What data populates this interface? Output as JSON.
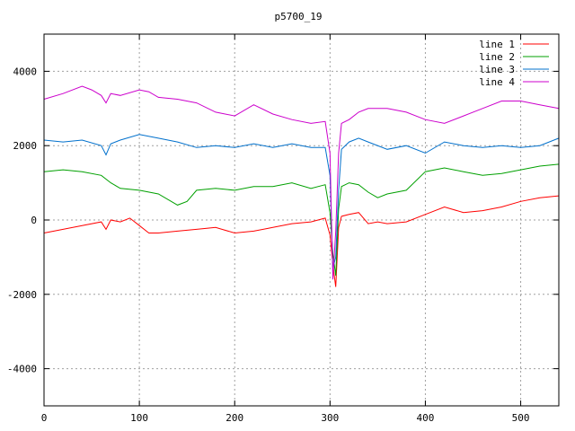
{
  "chart_data": {
    "type": "line",
    "title": "p5700_19",
    "xlabel": "",
    "ylabel": "",
    "xlim": [
      0,
      540
    ],
    "ylim": [
      -5000,
      5000
    ],
    "xticks": [
      0,
      100,
      200,
      300,
      400,
      500
    ],
    "yticks": [
      -4000,
      -2000,
      0,
      2000,
      4000
    ],
    "grid": true,
    "legend_position": "top-right",
    "series": [
      {
        "name": "line 1",
        "color": "#ff0000",
        "x": [
          0,
          20,
          40,
          60,
          65,
          70,
          80,
          90,
          100,
          110,
          120,
          140,
          160,
          180,
          200,
          220,
          240,
          260,
          280,
          295,
          300,
          303,
          306,
          309,
          312,
          320,
          330,
          340,
          350,
          360,
          380,
          400,
          420,
          440,
          460,
          480,
          500,
          520,
          540
        ],
        "y": [
          -350,
          -250,
          -150,
          -50,
          -250,
          0,
          -50,
          50,
          -150,
          -350,
          -350,
          -300,
          -250,
          -200,
          -350,
          -300,
          -200,
          -100,
          -50,
          50,
          -400,
          -1200,
          -1800,
          -200,
          100,
          150,
          200,
          -100,
          -50,
          -100,
          -50,
          150,
          350,
          200,
          250,
          350,
          500,
          600,
          650
        ]
      },
      {
        "name": "line 2",
        "color": "#00a000",
        "x": [
          0,
          20,
          40,
          60,
          70,
          80,
          100,
          120,
          140,
          150,
          160,
          180,
          200,
          220,
          240,
          260,
          280,
          295,
          300,
          303,
          306,
          309,
          312,
          320,
          330,
          340,
          350,
          360,
          380,
          400,
          420,
          440,
          460,
          480,
          500,
          520,
          540
        ],
        "y": [
          1300,
          1350,
          1300,
          1200,
          1000,
          850,
          800,
          700,
          400,
          500,
          800,
          850,
          800,
          900,
          900,
          1000,
          850,
          950,
          200,
          -900,
          -1500,
          300,
          900,
          1000,
          950,
          750,
          600,
          700,
          800,
          1300,
          1400,
          1300,
          1200,
          1250,
          1350,
          1450,
          1500
        ]
      },
      {
        "name": "line 3",
        "color": "#0070cc",
        "x": [
          0,
          20,
          40,
          60,
          65,
          70,
          80,
          100,
          120,
          140,
          160,
          180,
          200,
          220,
          240,
          260,
          280,
          295,
          300,
          303,
          306,
          309,
          312,
          320,
          330,
          340,
          360,
          380,
          400,
          420,
          440,
          460,
          480,
          500,
          520,
          540
        ],
        "y": [
          2150,
          2100,
          2150,
          2000,
          1750,
          2050,
          2150,
          2300,
          2200,
          2100,
          1950,
          2000,
          1950,
          2050,
          1950,
          2050,
          1950,
          1950,
          1200,
          -1300,
          -1000,
          800,
          1900,
          2100,
          2200,
          2100,
          1900,
          2000,
          1800,
          2100,
          2000,
          1950,
          2000,
          1950,
          2000,
          2200
        ]
      },
      {
        "name": "line 4",
        "color": "#cc00cc",
        "x": [
          0,
          20,
          40,
          50,
          60,
          65,
          70,
          80,
          100,
          110,
          120,
          140,
          160,
          180,
          200,
          220,
          240,
          260,
          280,
          295,
          300,
          303,
          306,
          309,
          312,
          320,
          330,
          340,
          360,
          380,
          400,
          420,
          440,
          460,
          480,
          500,
          520,
          540
        ],
        "y": [
          3250,
          3400,
          3600,
          3500,
          3350,
          3150,
          3400,
          3350,
          3500,
          3450,
          3300,
          3250,
          3150,
          2900,
          2800,
          3100,
          2850,
          2700,
          2600,
          2650,
          1800,
          -1600,
          -300,
          1800,
          2600,
          2700,
          2900,
          3000,
          3000,
          2900,
          2700,
          2600,
          2800,
          3000,
          3200,
          3200,
          3100,
          3000
        ]
      }
    ]
  }
}
